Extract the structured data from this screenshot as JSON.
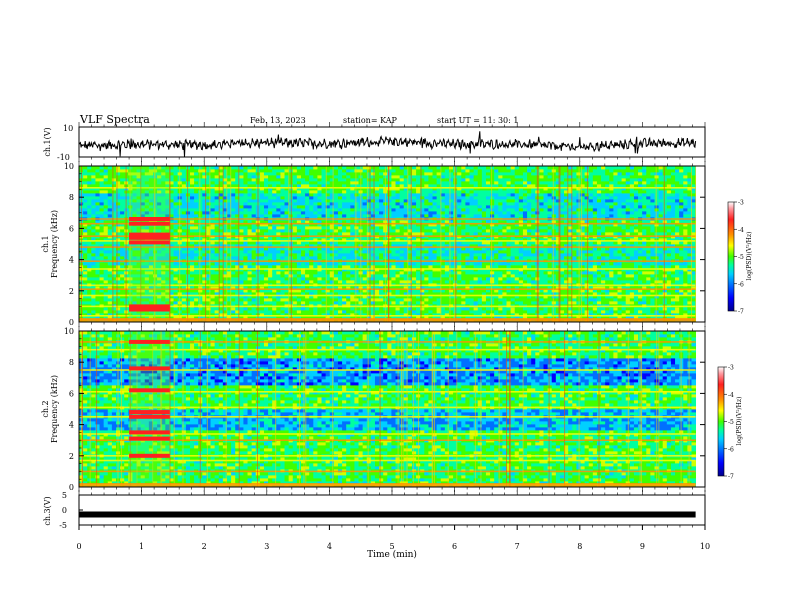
{
  "header": {
    "title": "VLF Spectra",
    "date": "Feb. 13, 2023",
    "station": "station= KAP",
    "start": "start  UT =   11: 30: 1"
  },
  "colors": {
    "trace": "#000000",
    "colormap": [
      "#00008b",
      "#0000ff",
      "#0070ff",
      "#00d0ff",
      "#00ffa0",
      "#40ff00",
      "#d0ff00",
      "#ffff00",
      "#ff9000",
      "#ff2020",
      "#ff9aa0",
      "#ffffff"
    ]
  },
  "chart_data": [
    {
      "type": "line",
      "name": "ch1-waveform",
      "ylabel": "ch.1(V)",
      "ylim": [
        -10,
        10
      ],
      "yticks": [
        10,
        -10
      ],
      "x_range_min": [
        0,
        9.85
      ],
      "approx_level": [
        {
          "x": 0,
          "y": -2.5
        },
        {
          "x": 1,
          "y": -1.5
        },
        {
          "x": 2,
          "y": -2.0
        },
        {
          "x": 3,
          "y": -0.5
        },
        {
          "x": 4,
          "y": -1.0
        },
        {
          "x": 5,
          "y": 0.5
        },
        {
          "x": 6,
          "y": -1.5
        },
        {
          "x": 7,
          "y": -1.5
        },
        {
          "x": 8,
          "y": -3.5
        },
        {
          "x": 9,
          "y": -1.0
        },
        {
          "x": 9.85,
          "y": -0.5
        }
      ]
    },
    {
      "type": "heatmap",
      "name": "ch1-spectrogram",
      "ylabel_line1": "ch.1",
      "ylabel_line2": "Frequency (kHz)",
      "ylim": [
        0,
        10
      ],
      "yticks": [
        0,
        2,
        4,
        6,
        8,
        10
      ],
      "x_range_min": [
        0,
        9.85
      ],
      "colorbar": {
        "label": "log(PSD)(V²/Hz)",
        "range": [
          -7,
          -3
        ],
        "ticks": [
          -3,
          -4,
          -5,
          -6,
          -7
        ]
      },
      "bands_kHz": [
        0.15,
        0.4,
        1.0,
        1.7,
        2.1,
        2.35,
        3.4,
        3.9,
        4.8,
        5.2,
        5.5,
        6.3,
        6.6,
        8.6
      ],
      "burst": {
        "x_min": [
          0.8,
          1.45
        ],
        "strong_kHz": [
          0.8,
          1.0,
          5.1,
          5.4,
          5.6,
          6.3,
          6.6
        ]
      }
    },
    {
      "type": "heatmap",
      "name": "ch2-spectrogram",
      "ylabel_line1": "ch.2",
      "ylabel_line2": "Frequency (kHz)",
      "ylim": [
        0,
        10
      ],
      "yticks": [
        0,
        2,
        4,
        6,
        8,
        10
      ],
      "x_range_min": [
        0,
        9.85
      ],
      "colorbar": {
        "label": "log(PSD)(V²/Hz)",
        "range": [
          -7,
          -3
        ],
        "ticks": [
          -3,
          -4,
          -5,
          -6,
          -7
        ]
      },
      "bands_kHz": [
        0.15,
        1.0,
        1.7,
        2.0,
        3.0,
        3.4,
        4.5,
        5.1,
        6.1,
        7.5,
        8.8,
        9.3
      ],
      "burst": {
        "x_min": [
          0.8,
          1.45
        ],
        "strong_kHz": [
          2.0,
          3.1,
          3.5,
          4.5,
          4.8,
          6.2,
          7.6,
          9.3
        ]
      }
    },
    {
      "type": "line",
      "name": "ch3-waveform",
      "ylabel": "ch.3(V)",
      "ylim": [
        -5,
        5
      ],
      "yticks": [
        5,
        0,
        -5
      ],
      "xlabel": "Time (min)",
      "xlim": [
        0,
        10
      ],
      "xticks": [
        0,
        1,
        2,
        3,
        4,
        5,
        6,
        7,
        8,
        9,
        10
      ],
      "x_range_min": [
        0,
        9.85
      ],
      "level": -1.5
    }
  ]
}
